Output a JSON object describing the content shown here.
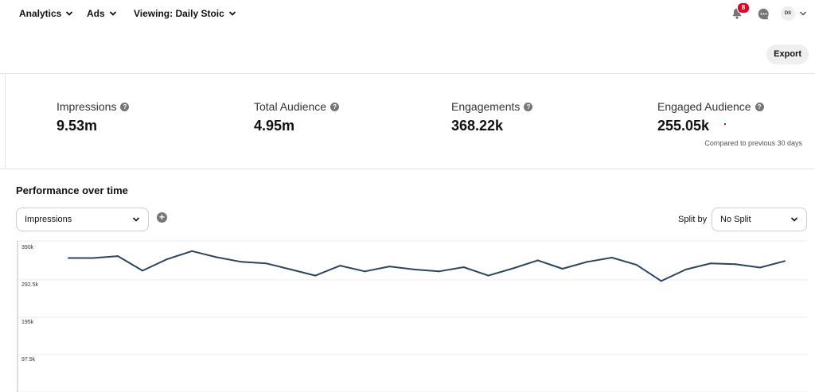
{
  "nav": {
    "items": [
      {
        "label": "Analytics"
      },
      {
        "label": "Ads"
      },
      {
        "label": "Viewing: Daily Stoic"
      }
    ],
    "notification_count": "8",
    "avatar_text": "DS",
    "icons": [
      "chevron-down-icon",
      "bell-icon",
      "chat-icon",
      "avatar"
    ]
  },
  "toolbar": {
    "export_label": "Export"
  },
  "metrics": [
    {
      "label": "Impressions",
      "value": "9.53m"
    },
    {
      "label": "Total Audience",
      "value": "4.95m"
    },
    {
      "label": "Engagements",
      "value": "368.22k"
    },
    {
      "label": "Engaged Audience",
      "value": "255.05k"
    }
  ],
  "compare_text": "Compared to previous 30 days",
  "performance": {
    "title": "Performance over time",
    "metric_select": "Impressions",
    "split_label": "Split by",
    "split_select": "No Split"
  },
  "colors": {
    "accent": "#e60023",
    "line": "#2b4462",
    "grid": "#ebebeb"
  },
  "chart_data": {
    "type": "line",
    "ylim": [
      0,
      390000
    ],
    "y_ticks": [
      390000,
      292500,
      195000,
      97500
    ],
    "y_tick_labels": [
      "390k",
      "292.5k",
      "195k",
      "97.5k"
    ],
    "series": [
      {
        "values": [
          360000,
          360000,
          365000,
          327000,
          357000,
          378000,
          362000,
          350000,
          346000,
          330000,
          314000,
          340000,
          325000,
          338000,
          330000,
          325000,
          336000,
          314000,
          333000,
          354000,
          332000,
          350000,
          361000,
          342000,
          300000,
          330000,
          346000,
          344000,
          335000,
          352000
        ]
      }
    ]
  }
}
